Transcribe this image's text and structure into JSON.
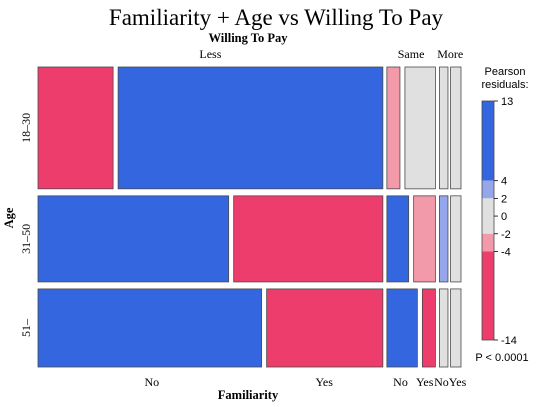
{
  "colors": {
    "strong_pos": "#3466e0",
    "mid_pos": "#95a7ea",
    "neutral": "#e0e0e0",
    "mid_neg": "#f29aaa",
    "strong_neg": "#ec3d6c",
    "stroke": "#4a4a4a"
  },
  "chart_data": {
    "type": "mosaic",
    "title": "Familiarity + Age vs Willing To Pay",
    "column_variable": "Willing To Pay",
    "row_variable": "Age",
    "subcolumn_variable": "Familiarity",
    "columns": [
      "Less",
      "Same",
      "More"
    ],
    "rows": [
      "18–30",
      "31–50",
      "51–"
    ],
    "subcolumns": [
      "No",
      "Yes"
    ],
    "column_fractions": [
      0.831,
      0.117,
      0.052
    ],
    "row_fractions": [
      0.426,
      0.301,
      0.273
    ],
    "cells": [
      {
        "row": "18–30",
        "col": "Less",
        "split": 0.221,
        "shading": [
          "strong_neg",
          "strong_pos"
        ]
      },
      {
        "row": "18–30",
        "col": "Same",
        "split": 0.3,
        "shading": [
          "mid_neg",
          "neutral"
        ]
      },
      {
        "row": "18–30",
        "col": "More",
        "split": 0.45,
        "shading": [
          "neutral",
          "neutral"
        ]
      },
      {
        "row": "31–50",
        "col": "Less",
        "split": 0.561,
        "shading": [
          "strong_pos",
          "strong_neg"
        ]
      },
      {
        "row": "31–50",
        "col": "Same",
        "split": 0.5,
        "shading": [
          "strong_pos",
          "mid_neg"
        ]
      },
      {
        "row": "31–50",
        "col": "More",
        "split": 0.45,
        "shading": [
          "mid_pos",
          "neutral"
        ]
      },
      {
        "row": "51–",
        "col": "Less",
        "split": 0.658,
        "shading": [
          "strong_pos",
          "strong_neg"
        ]
      },
      {
        "row": "51–",
        "col": "Same",
        "split": 0.7,
        "shading": [
          "strong_pos",
          "strong_neg"
        ]
      },
      {
        "row": "51–",
        "col": "More",
        "split": 0.45,
        "shading": [
          "neutral",
          "neutral"
        ]
      }
    ],
    "bottom_labels": [
      {
        "text": "No",
        "col": "Less",
        "at": 0.33
      },
      {
        "text": "Yes",
        "col": "Less",
        "at": 0.83
      },
      {
        "text": "No",
        "col": "Same",
        "at": 0.28
      },
      {
        "text": "Yes",
        "col": "Same",
        "at": 0.78
      },
      {
        "text": "NoYes",
        "col": "More",
        "at": 0.5
      }
    ],
    "legend": {
      "title_line1": "Pearson",
      "title_line2": "residuals:",
      "max": 13,
      "min": -14,
      "ticks": [
        13,
        4,
        2,
        0,
        -2,
        -4,
        -14
      ],
      "tick_labels": [
        "13",
        "4",
        "2",
        "0",
        "-2",
        "-4",
        "-14"
      ],
      "bands": [
        {
          "from": 4,
          "to": 13,
          "shade": "strong_pos"
        },
        {
          "from": 2,
          "to": 4,
          "shade": "mid_pos"
        },
        {
          "from": -2,
          "to": 2,
          "shade": "neutral"
        },
        {
          "from": -4,
          "to": -2,
          "shade": "mid_neg"
        },
        {
          "from": -14,
          "to": -4,
          "shade": "strong_neg"
        }
      ],
      "p_value": "P < 0.0001"
    }
  }
}
